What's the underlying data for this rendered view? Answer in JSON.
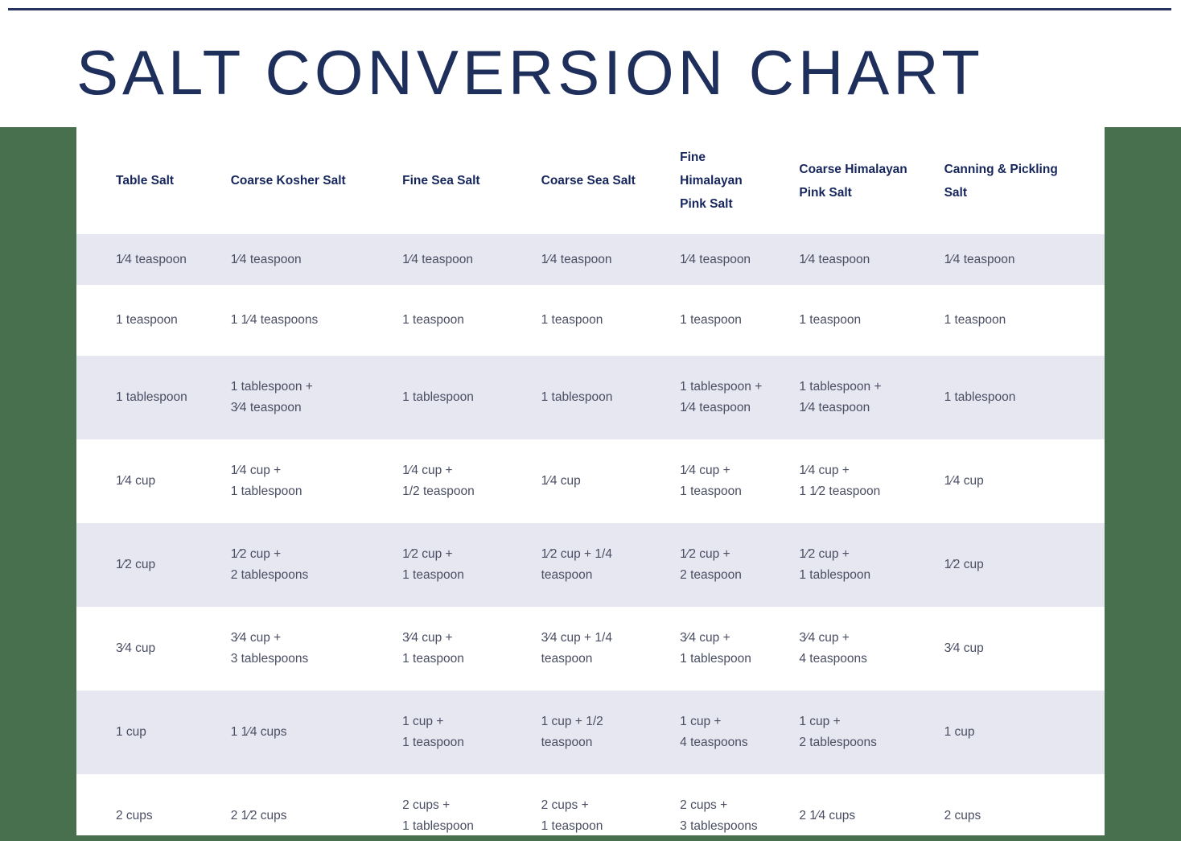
{
  "page": {
    "title": "SALT CONVERSION CHART"
  },
  "colors": {
    "background_green": "#48704f",
    "card_white": "#ffffff",
    "row_stripe": "#e7e7f1",
    "title_navy": "#1f2f5c",
    "header_text": "#16265c",
    "cell_text": "#4a4e63",
    "top_rule": "#25335e"
  },
  "table": {
    "columns": [
      "Table Salt",
      "Coarse Kosher Salt",
      "Fine Sea Salt",
      "Coarse Sea Salt",
      "Fine\nHimalayan\nPink Salt",
      "Coarse Himalayan\nPink Salt",
      "Canning & Pickling\nSalt"
    ],
    "rows": [
      [
        "1⁄4 teaspoon",
        "1⁄4 teaspoon",
        "1⁄4 teaspoon",
        "1⁄4 teaspoon",
        "1⁄4 teaspoon",
        "1⁄4 teaspoon",
        "1⁄4 teaspoon"
      ],
      [
        "1 teaspoon",
        "1 1⁄4 teaspoons",
        "1 teaspoon",
        "1 teaspoon",
        "1 teaspoon",
        "1 teaspoon",
        "1 teaspoon"
      ],
      [
        "1 tablespoon",
        "1 tablespoon +\n3⁄4 teaspoon",
        "1 tablespoon",
        "1 tablespoon",
        "1 tablespoon +\n1⁄4 teaspoon",
        "1 tablespoon +\n1⁄4 teaspoon",
        "1 tablespoon"
      ],
      [
        "1⁄4 cup",
        "1⁄4 cup +\n1 tablespoon",
        "1⁄4 cup +\n1/2 teaspoon",
        "1⁄4 cup",
        "1⁄4 cup +\n1 teaspoon",
        "1⁄4 cup +\n1 1⁄2 teaspoon",
        "1⁄4 cup"
      ],
      [
        "1⁄2 cup",
        "1⁄2 cup +\n2 tablespoons",
        "1⁄2 cup +\n1 teaspoon",
        "1⁄2 cup + 1/4\nteaspoon",
        "1⁄2 cup +\n2 teaspoon",
        "1⁄2 cup +\n1 tablespoon",
        "1⁄2 cup"
      ],
      [
        "3⁄4 cup",
        "3⁄4 cup +\n3 tablespoons",
        "3⁄4 cup +\n1 teaspoon",
        "3⁄4 cup + 1/4\nteaspoon",
        "3⁄4 cup +\n1 tablespoon",
        "3⁄4 cup +\n4 teaspoons",
        "3⁄4 cup"
      ],
      [
        "1 cup",
        "1 1⁄4 cups",
        "1 cup +\n1 teaspoon",
        "1 cup + 1/2\nteaspoon",
        "1 cup +\n4 teaspoons",
        "1 cup +\n2 tablespoons",
        "1 cup"
      ],
      [
        "2 cups",
        "2 1⁄2 cups",
        "2 cups +\n1 tablespoon",
        "2 cups +\n1 teaspoon",
        "2 cups +\n3 tablespoons",
        "2 1⁄4 cups",
        "2 cups"
      ]
    ]
  }
}
